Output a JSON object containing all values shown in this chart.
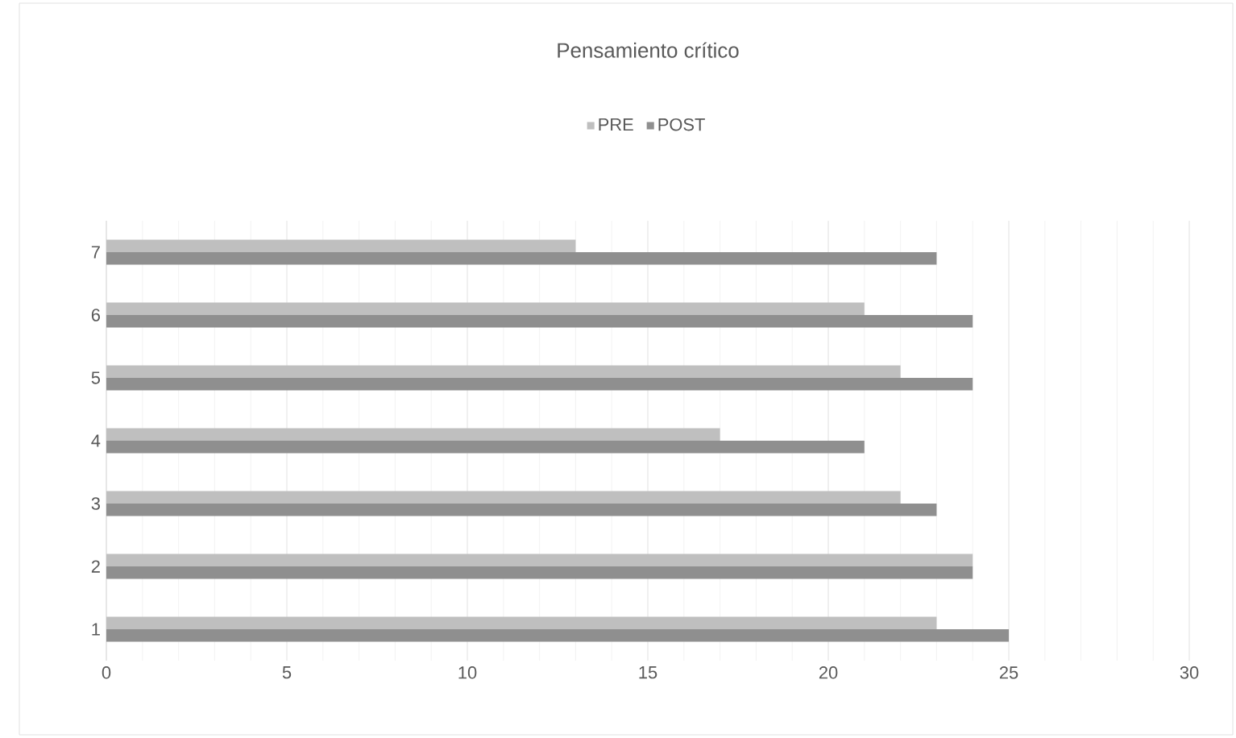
{
  "chart_data": {
    "type": "bar",
    "orientation": "horizontal",
    "title": "Pensamiento crítico",
    "categories": [
      "7",
      "6",
      "5",
      "4",
      "3",
      "2",
      "1"
    ],
    "series": [
      {
        "name": "PRE",
        "color": "#bfbfbf",
        "values": [
          13,
          21,
          22,
          17,
          22,
          24,
          23
        ]
      },
      {
        "name": "POST",
        "color": "#8f8f8f",
        "values": [
          23,
          24,
          24,
          21,
          23,
          24,
          25
        ]
      }
    ],
    "xlim": [
      0,
      30
    ],
    "xticks": [
      0,
      5,
      10,
      15,
      20,
      25,
      30
    ],
    "grid": "x",
    "legend": "top"
  }
}
